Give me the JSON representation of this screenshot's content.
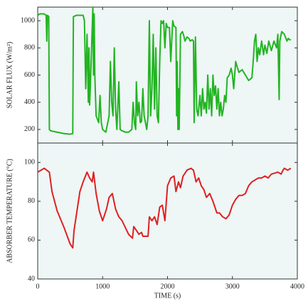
{
  "chart_data": [
    {
      "type": "line",
      "y_label": "SOLAR FLUX (W/m²)",
      "xlim": [
        0,
        4000
      ],
      "ylim": [
        100,
        1100
      ],
      "yticks": [
        200,
        400,
        600,
        800,
        1000
      ],
      "series": [
        {
          "color": "#22b422",
          "x": [
            0,
            30,
            100,
            130,
            140,
            150,
            170,
            180,
            200,
            300,
            400,
            500,
            540,
            550,
            600,
            700,
            720,
            740,
            760,
            780,
            790,
            800,
            810,
            830,
            850,
            860,
            870,
            880,
            900,
            940,
            960,
            980,
            1000,
            1050,
            1100,
            1120,
            1140,
            1160,
            1180,
            1200,
            1220,
            1250,
            1270,
            1300,
            1350,
            1400,
            1450,
            1470,
            1490,
            1510,
            1520,
            1540,
            1560,
            1580,
            1600,
            1620,
            1640,
            1660,
            1680,
            1700,
            1720,
            1740,
            1760,
            1780,
            1800,
            1820,
            1840,
            1860,
            1880,
            1900,
            1920,
            1940,
            1960,
            1980,
            2000,
            2030,
            2050,
            2080,
            2100,
            2130,
            2140,
            2150,
            2160,
            2170,
            2180,
            2200,
            2230,
            2250,
            2270,
            2300,
            2330,
            2350,
            2380,
            2400,
            2410,
            2430,
            2450,
            2470,
            2500,
            2520,
            2540,
            2560,
            2580,
            2600,
            2620,
            2640,
            2660,
            2680,
            2700,
            2720,
            2740,
            2760,
            2780,
            2800,
            2820,
            2840,
            2860,
            2880,
            2900,
            2920,
            2950,
            2980,
            3000,
            3020,
            3050,
            3080,
            3100,
            3150,
            3200,
            3250,
            3300,
            3320,
            3340,
            3360,
            3380,
            3400,
            3420,
            3450,
            3480,
            3500,
            3530,
            3560,
            3600,
            3640,
            3680,
            3700,
            3720,
            3730,
            3760,
            3800,
            3840,
            3860,
            3880,
            3900
          ],
          "values": [
            1040,
            1050,
            1050,
            1040,
            850,
            1040,
            1030,
            200,
            190,
            180,
            170,
            165,
            170,
            1030,
            1040,
            1040,
            1000,
            500,
            900,
            400,
            800,
            380,
            500,
            800,
            1100,
            600,
            1050,
            600,
            300,
            250,
            450,
            250,
            200,
            180,
            300,
            700,
            400,
            300,
            800,
            350,
            200,
            550,
            200,
            190,
            180,
            180,
            200,
            400,
            250,
            200,
            550,
            300,
            400,
            250,
            260,
            500,
            300,
            250,
            200,
            300,
            1000,
            300,
            500,
            900,
            350,
            800,
            300,
            250,
            700,
            1000,
            980,
            1000,
            800,
            980,
            950,
            950,
            700,
            1000,
            960,
            950,
            300,
            700,
            200,
            500,
            200,
            900,
            920,
            890,
            850,
            880,
            870,
            850,
            860,
            850,
            250,
            880,
            350,
            300,
            450,
            300,
            500,
            350,
            400,
            320,
            600,
            350,
            500,
            300,
            600,
            450,
            520,
            350,
            500,
            300,
            400,
            300,
            350,
            450,
            400,
            580,
            600,
            650,
            600,
            500,
            700,
            650,
            620,
            640,
            600,
            560,
            580,
            700,
            850,
            900,
            700,
            800,
            750,
            850,
            750,
            820,
            760,
            850,
            780,
            850,
            800,
            900,
            420,
            850,
            920,
            900,
            850,
            870,
            860,
            860
          ]
        }
      ]
    },
    {
      "type": "line",
      "y_label": "ABSORBER TEMPERATURE (°C)",
      "x_label": "TIME (s)",
      "xlim": [
        0,
        4000
      ],
      "xticks": [
        0,
        1000,
        2000,
        3000,
        4000
      ],
      "ylim": [
        40,
        110
      ],
      "yticks": [
        40,
        60,
        80,
        100
      ],
      "series": [
        {
          "color": "#e02020",
          "x": [
            0,
            100,
            180,
            220,
            300,
            400,
            500,
            540,
            560,
            650,
            700,
            760,
            800,
            840,
            860,
            900,
            950,
            1000,
            1060,
            1100,
            1150,
            1200,
            1250,
            1300,
            1400,
            1460,
            1480,
            1520,
            1560,
            1600,
            1620,
            1700,
            1720,
            1760,
            1800,
            1840,
            1880,
            1920,
            1960,
            2000,
            2050,
            2100,
            2130,
            2170,
            2200,
            2240,
            2300,
            2360,
            2400,
            2440,
            2480,
            2520,
            2560,
            2600,
            2650,
            2700,
            2760,
            2800,
            2850,
            2900,
            2950,
            3000,
            3050,
            3100,
            3150,
            3200,
            3250,
            3300,
            3350,
            3400,
            3450,
            3500,
            3550,
            3600,
            3700,
            3750,
            3780,
            3800,
            3850,
            3900
          ],
          "values": [
            95,
            97,
            95,
            85,
            75,
            67,
            58,
            56,
            65,
            85,
            90,
            95,
            92,
            90,
            95,
            84,
            75,
            70,
            76,
            82,
            84,
            76,
            72,
            70,
            63,
            61,
            67,
            65,
            63,
            64,
            62,
            62,
            72,
            70,
            72,
            68,
            77,
            78,
            70,
            88,
            92,
            93,
            85,
            90,
            87,
            93,
            96,
            97,
            96,
            90,
            92,
            88,
            86,
            82,
            84,
            80,
            74,
            74,
            72,
            71,
            73,
            78,
            81,
            83,
            83,
            84,
            88,
            90,
            91,
            92,
            92,
            93,
            92,
            94,
            95,
            94,
            96,
            97,
            96,
            97
          ]
        }
      ]
    }
  ]
}
